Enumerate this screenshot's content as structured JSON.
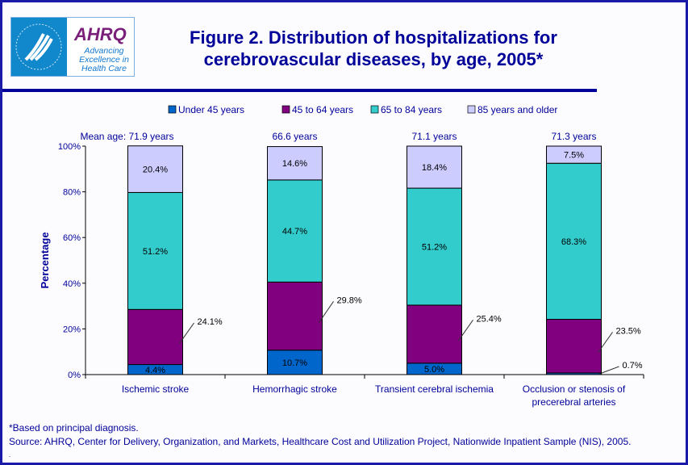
{
  "header": {
    "title_line1": "Figure 2. Distribution of hospitalizations for",
    "title_line2": "cerebrovascular diseases, by age, 2005*",
    "logo_text": "AHRQ",
    "logo_tagline": [
      "Advancing",
      "Excellence in",
      "Health Care"
    ]
  },
  "footnotes": {
    "note": "*Based on principal diagnosis.",
    "source": "Source: AHRQ, Center for Delivery, Organization, and Markets, Healthcare Cost and Utilization Project, Nationwide Inpatient Sample (NIS), 2005.",
    "dot": "."
  },
  "chart_data": {
    "type": "bar",
    "stacked": true,
    "ylabel": "Percentage",
    "ylim": [
      0,
      100
    ],
    "yticks": [
      "0%",
      "20%",
      "40%",
      "60%",
      "80%",
      "100%"
    ],
    "categories": [
      "Ischemic stroke",
      "Hemorrhagic stroke",
      "Transient cerebral ischemia",
      "Occlusion or stenosis of precerebral arteries"
    ],
    "mean_age_labels": [
      "Mean age: 71.9 years",
      "66.6 years",
      "71.1 years",
      "71.3 years"
    ],
    "legend_placement": "top",
    "series": [
      {
        "name": "Under 45 years",
        "color": "#0066CC",
        "values": [
          4.4,
          10.7,
          5.0,
          0.7
        ],
        "labels": [
          "4.4%",
          "10.7%",
          "5.0%",
          "0.7%"
        ]
      },
      {
        "name": "45 to 64 years",
        "color": "#800080",
        "values": [
          24.1,
          29.8,
          25.4,
          23.5
        ],
        "labels": [
          "24.1%",
          "29.8%",
          "25.4%",
          "23.5%"
        ]
      },
      {
        "name": "65 to 84 years",
        "color": "#33CCCC",
        "values": [
          51.2,
          44.7,
          51.2,
          68.3
        ],
        "labels": [
          "51.2%",
          "44.7%",
          "51.2%",
          "68.3%"
        ]
      },
      {
        "name": "85 years and older",
        "color": "#CCCCFF",
        "values": [
          20.4,
          14.6,
          18.4,
          7.5
        ],
        "labels": [
          "20.4%",
          "14.6%",
          "18.4%",
          "7.5%"
        ]
      }
    ]
  }
}
